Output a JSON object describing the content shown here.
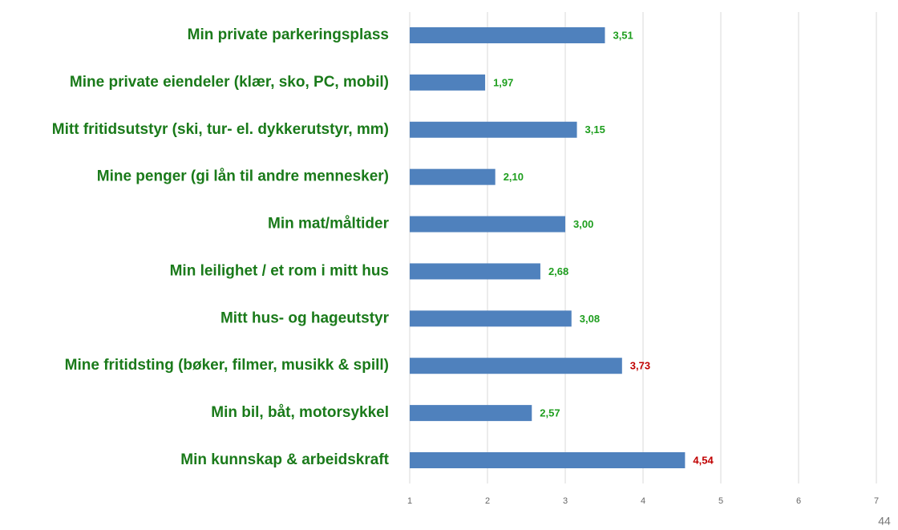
{
  "chart_data": {
    "type": "barh",
    "categories": [
      "Min private parkeringsplass",
      "Mine private eiendeler (klær, sko, PC, mobil)",
      "Mitt fritidsutstyr (ski, tur- el. dykkerutstyr, mm)",
      "Mine penger (gi lån til andre mennesker)",
      "Min mat/måltider",
      "Min leilighet / et rom i mitt hus",
      "Mitt hus- og hageutstyr",
      "Mine fritidsting (bøker, filmer, musikk & spill)",
      "Min bil, båt, motorsykkel",
      "Min kunnskap & arbeidskraft"
    ],
    "values": [
      3.51,
      1.97,
      3.15,
      2.1,
      3.0,
      2.68,
      3.08,
      3.73,
      2.57,
      4.54
    ],
    "value_labels": [
      "3,51",
      "1,97",
      "3,15",
      "2,10",
      "3,00",
      "2,68",
      "3,08",
      "3,73",
      "2,57",
      "4,54"
    ],
    "value_label_colors": [
      "#1e9e1e",
      "#1e9e1e",
      "#1e9e1e",
      "#1e9e1e",
      "#1e9e1e",
      "#1e9e1e",
      "#1e9e1e",
      "#c00000",
      "#1e9e1e",
      "#c00000"
    ],
    "color": "#4f81bd",
    "category_color": "#1a7a1a",
    "xlim": [
      1,
      7
    ],
    "xticks": [
      1,
      2,
      3,
      4,
      5,
      6,
      7
    ],
    "grid": true
  },
  "page_number": "44"
}
